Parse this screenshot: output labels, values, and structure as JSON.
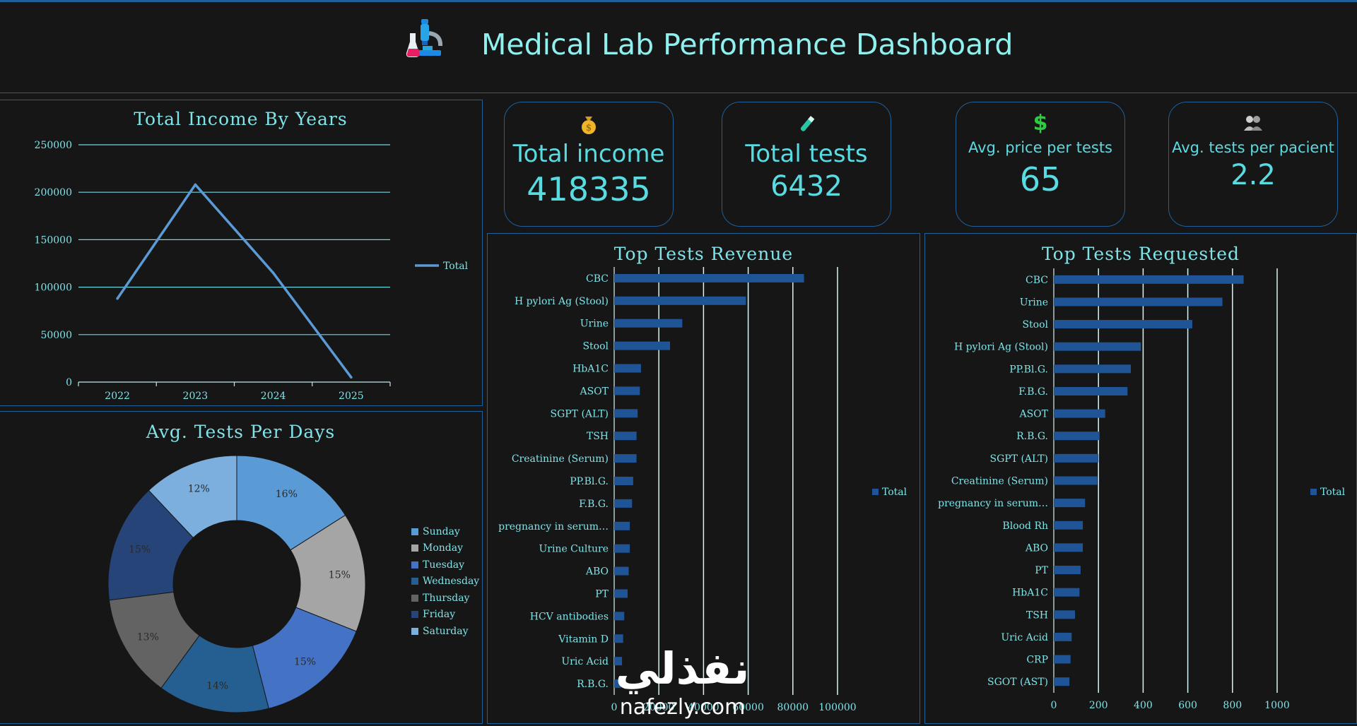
{
  "header": {
    "title": "Medical Lab Performance Dashboard",
    "icon": "microscope-flask-icon"
  },
  "kpis": [
    {
      "id": "income",
      "icon": "money-bag-icon",
      "label": "Total income",
      "value": "418335"
    },
    {
      "id": "tests",
      "icon": "test-tube-icon",
      "label": "Total tests",
      "value": "6432"
    },
    {
      "id": "price",
      "icon": "dollar-sign-icon",
      "label": "Avg. price per tests",
      "value": "65"
    },
    {
      "id": "pacient",
      "icon": "people-icon",
      "label": "Avg. tests per pacient",
      "value": "2.2"
    }
  ],
  "watermark": {
    "arabic": "نفذلي",
    "latin": "nafezly.com"
  },
  "chart_data": [
    {
      "type": "line",
      "title": "Total Income By Years",
      "x": [
        "2022",
        "2023",
        "2024",
        "2025"
      ],
      "series": [
        {
          "name": "Total",
          "values": [
            88000,
            208000,
            115000,
            5000
          ]
        }
      ],
      "ylim": [
        0,
        250000
      ],
      "yticks": [
        0,
        50000,
        100000,
        150000,
        200000,
        250000
      ],
      "grid": true,
      "legend": "right",
      "color": "#5b9bd5"
    },
    {
      "type": "pie",
      "title": "Avg. Tests Per Days",
      "donut": true,
      "labels": [
        "Sunday",
        "Monday",
        "Tuesday",
        "Wednesday",
        "Thursday",
        "Friday",
        "Saturday"
      ],
      "values": [
        16,
        15,
        15,
        14,
        13,
        15,
        12
      ],
      "value_labels": [
        "16%",
        "15%",
        "15%",
        "14%",
        "13%",
        "15%",
        "12%"
      ],
      "colors": [
        "#5b9bd5",
        "#a5a5a5",
        "#4472c4",
        "#255e91",
        "#636363",
        "#264478",
        "#7cafdd"
      ],
      "legend": "right"
    },
    {
      "type": "bar",
      "orientation": "horizontal",
      "title": "Top Tests Revenue",
      "categories": [
        "CBC",
        "H pylori Ag (Stool)",
        "Urine",
        "Stool",
        "HbA1C",
        "ASOT",
        "SGPT (ALT)",
        "TSH",
        "Creatinine (Serum)",
        "PP.Bl.G.",
        "F.B.G.",
        "pregnancy in serum…",
        "Urine Culture",
        "ABO",
        "PT",
        "HCV antibodies",
        "Vitamin D",
        "Uric Acid",
        "R.B.G."
      ],
      "series": [
        {
          "name": "Total",
          "values": [
            85000,
            59000,
            30500,
            25000,
            12000,
            11500,
            10500,
            10000,
            10000,
            8500,
            8000,
            7000,
            7000,
            6500,
            6000,
            4500,
            4000,
            3500,
            3000
          ]
        }
      ],
      "xlim": [
        0,
        100000
      ],
      "xticks": [
        0,
        20000,
        40000,
        60000,
        80000,
        100000
      ],
      "grid": true,
      "legend": "right",
      "color": "#1f5596"
    },
    {
      "type": "bar",
      "orientation": "horizontal",
      "title": "Top Tests Requested",
      "categories": [
        "CBC",
        "Urine",
        "Stool",
        "H pylori Ag (Stool)",
        "PP.Bl.G.",
        "F.B.G.",
        "ASOT",
        "R.B.G.",
        "SGPT (ALT)",
        "Creatinine (Serum)",
        "pregnancy in serum…",
        "Blood Rh",
        "ABO",
        "PT",
        "HbA1C",
        "TSH",
        "Uric Acid",
        "CRP",
        "SGOT (AST)"
      ],
      "series": [
        {
          "name": "Total",
          "values": [
            850,
            755,
            620,
            390,
            345,
            330,
            230,
            205,
            200,
            195,
            140,
            130,
            130,
            120,
            115,
            95,
            80,
            75,
            70
          ]
        }
      ],
      "xlim": [
        0,
        1000
      ],
      "xticks": [
        0,
        200,
        400,
        600,
        800,
        1000
      ],
      "grid": true,
      "legend": "right",
      "color": "#1f5596"
    }
  ]
}
